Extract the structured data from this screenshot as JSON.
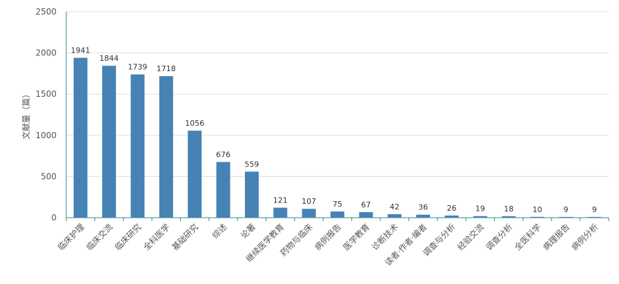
{
  "chart_data": {
    "type": "bar",
    "title": "",
    "xlabel": "",
    "ylabel": "文献量（篇）",
    "ylim": [
      0,
      2500
    ],
    "yticks": [
      0,
      500,
      1000,
      1500,
      2000,
      2500
    ],
    "grid": true,
    "bar_color": "#4682b4",
    "categories": [
      "临床护理",
      "临床交流",
      "临床研究",
      "全科医学",
      "基础研究",
      "综述",
      "论著",
      "继续医学教育",
      "药物与临床",
      "病例报告",
      "医学教育",
      "诊断技术",
      "读者·作者·编者",
      "调查与分析",
      "经验交流",
      "调查分析",
      "全医科学",
      "病理报告",
      "病例分析"
    ],
    "values": [
      1941,
      1844,
      1739,
      1718,
      1056,
      676,
      559,
      121,
      107,
      75,
      67,
      42,
      36,
      26,
      19,
      18,
      10,
      9,
      9
    ]
  }
}
